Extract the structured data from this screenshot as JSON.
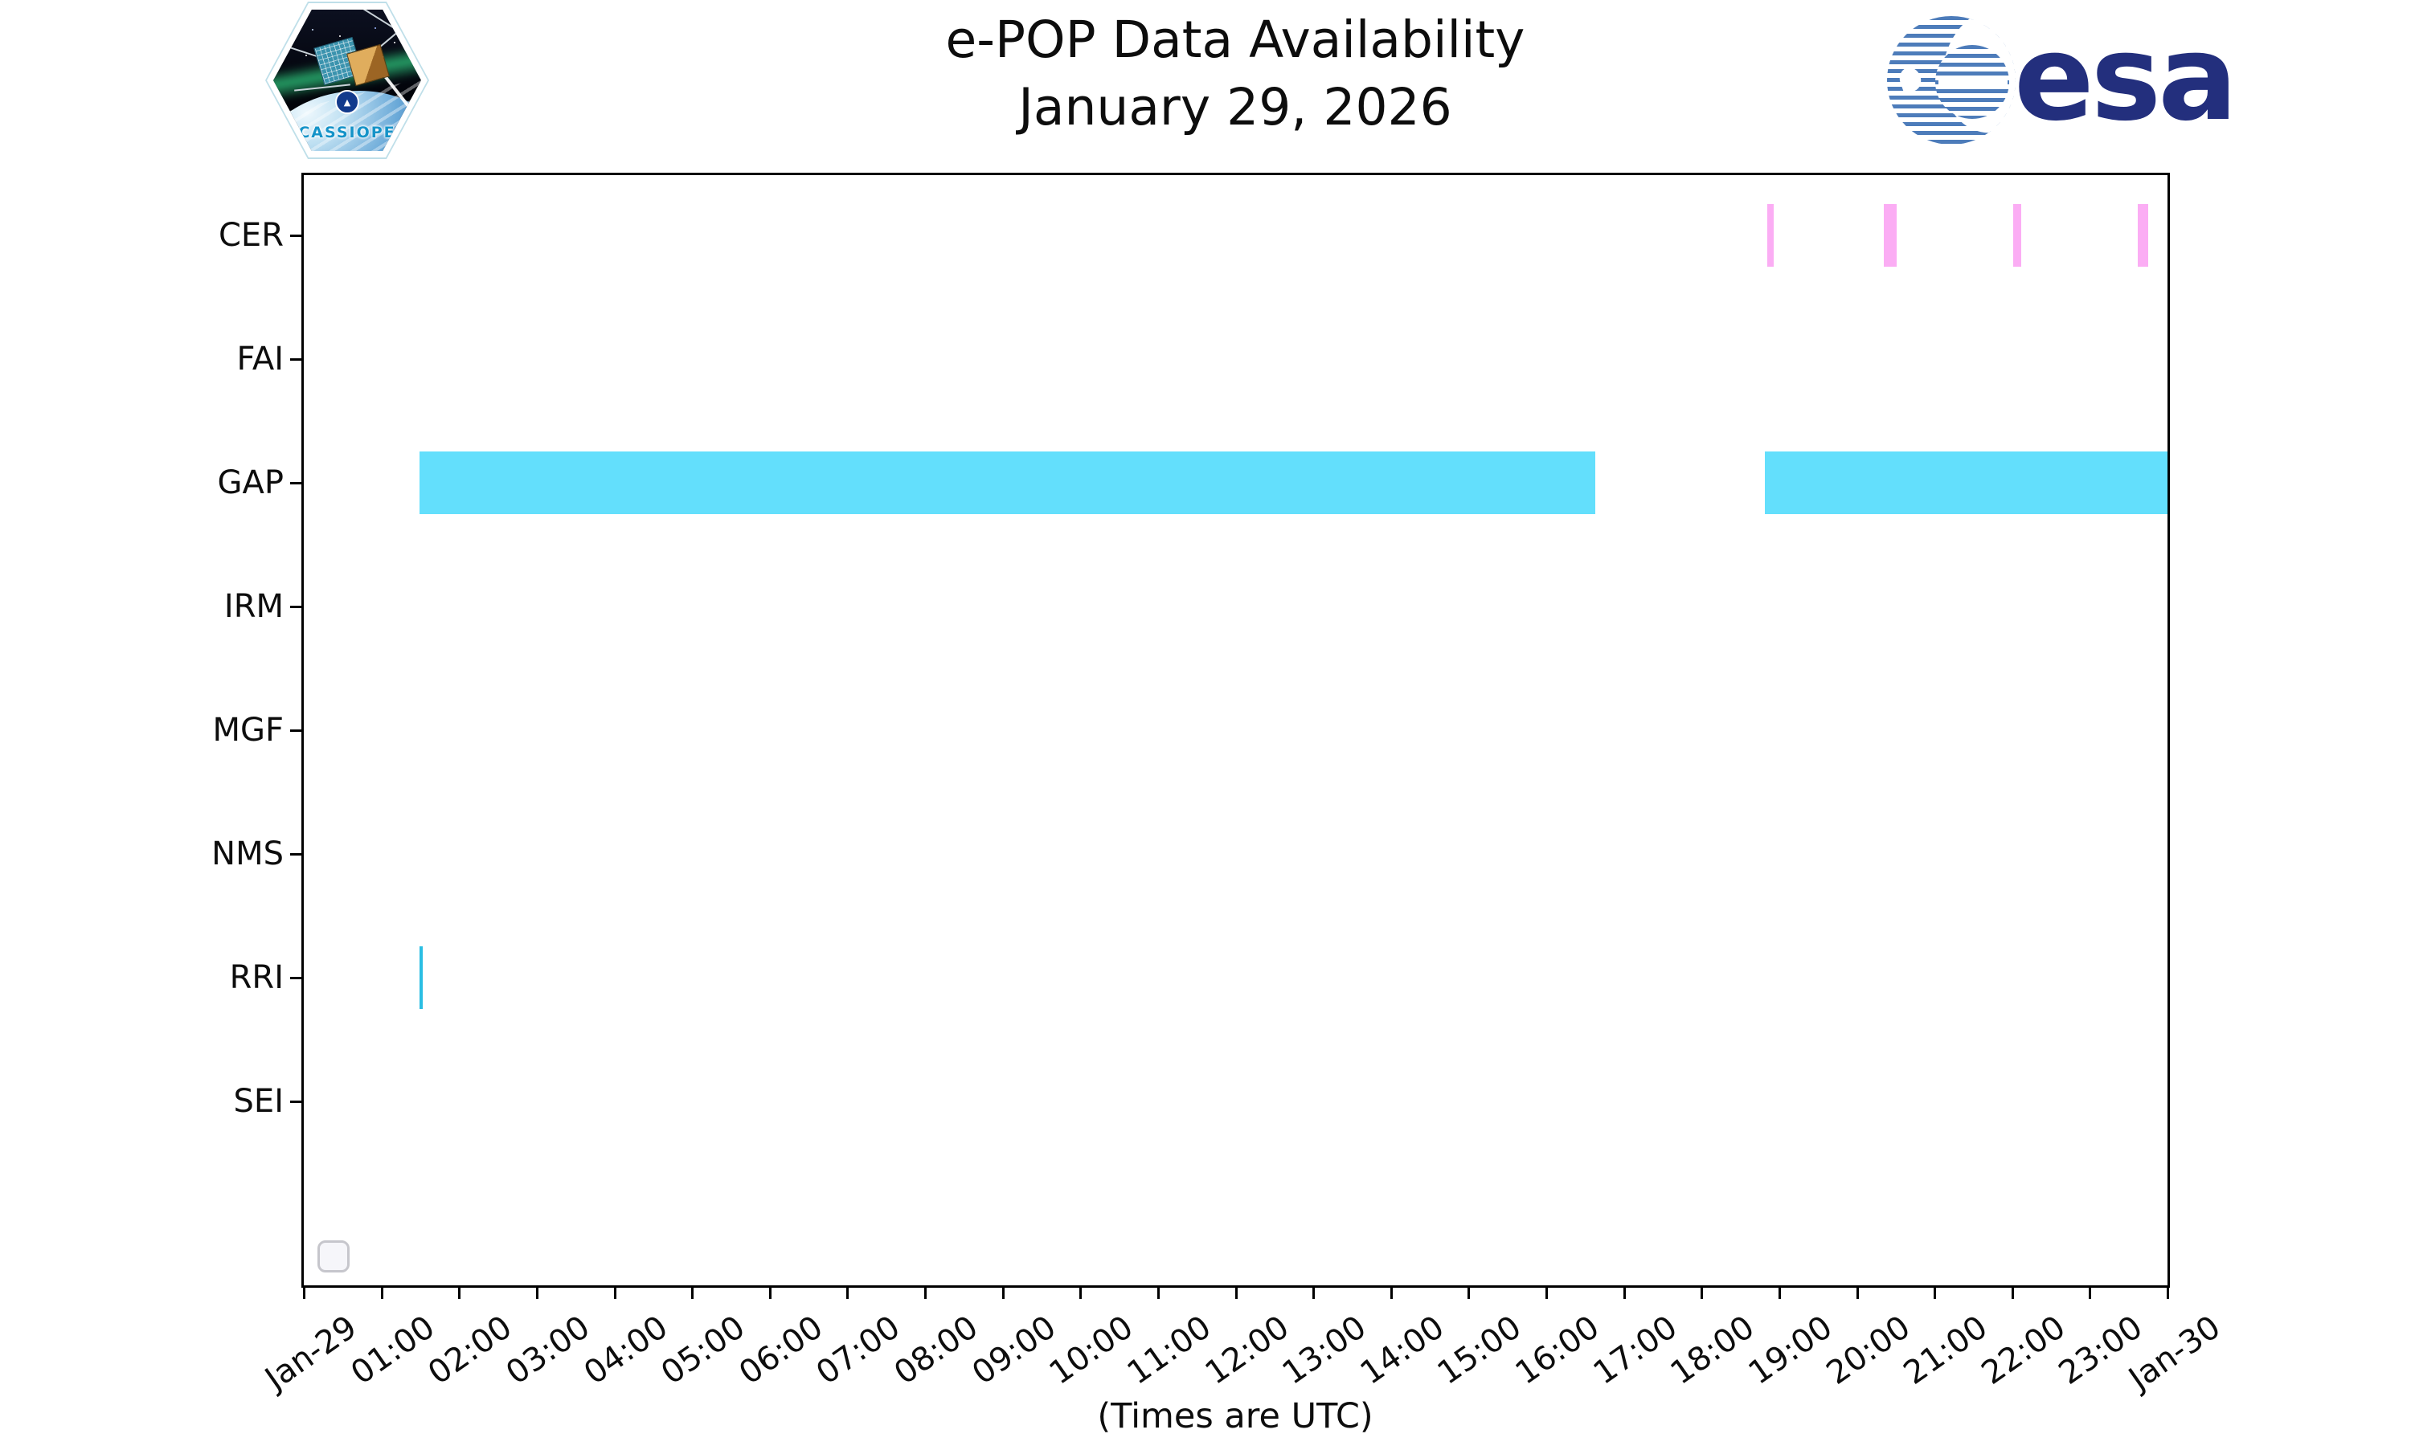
{
  "header": {
    "title_line1": "e-POP Data Availability",
    "title_line2": "January 29, 2026"
  },
  "branding": {
    "cassiope_text": "CASSIOPE",
    "esa_text": "esa",
    "esa_navy": "#232f7d",
    "cassiope_text_color": "#1593c8"
  },
  "chart_data": {
    "type": "timeline",
    "title": "e-POP Data Availability",
    "subtitle": "January 29, 2026",
    "xlabel": "(Times are UTC)",
    "x_range_hours": [
      0,
      24
    ],
    "x_tick_labels": [
      "Jan-29",
      "01:00",
      "02:00",
      "03:00",
      "04:00",
      "05:00",
      "06:00",
      "07:00",
      "08:00",
      "09:00",
      "10:00",
      "11:00",
      "12:00",
      "13:00",
      "14:00",
      "15:00",
      "16:00",
      "17:00",
      "18:00",
      "19:00",
      "20:00",
      "21:00",
      "22:00",
      "23:00",
      "Jan-30"
    ],
    "instruments": [
      "CER",
      "FAI",
      "GAP",
      "IRM",
      "MGF",
      "NMS",
      "RRI",
      "SEI"
    ],
    "colors": {
      "CER": "#fbadf4",
      "GAP": "#63dffc",
      "RRI": "#2abee3",
      "axis": "#000000"
    },
    "legend_position": "lower left",
    "grid": false,
    "availability": [
      {
        "instrument": "CER",
        "start": "18:51",
        "end": "18:56",
        "start_hour": 18.85,
        "end_hour": 18.93
      },
      {
        "instrument": "CER",
        "start": "20:21",
        "end": "20:30",
        "start_hour": 20.35,
        "end_hour": 20.51
      },
      {
        "instrument": "CER",
        "start": "22:01",
        "end": "22:07",
        "start_hour": 22.01,
        "end_hour": 22.12
      },
      {
        "instrument": "CER",
        "start": "23:37",
        "end": "23:45",
        "start_hour": 23.62,
        "end_hour": 23.75
      },
      {
        "instrument": "GAP",
        "start": "01:29",
        "end": "16:38",
        "start_hour": 1.49,
        "end_hour": 16.63
      },
      {
        "instrument": "GAP",
        "start": "18:49",
        "end": "24:00",
        "start_hour": 18.82,
        "end_hour": 24.0
      },
      {
        "instrument": "RRI",
        "start": "01:29",
        "end": "01:32",
        "start_hour": 1.49,
        "end_hour": 1.53
      }
    ]
  },
  "footer": {
    "caption": "(Times are UTC)"
  }
}
